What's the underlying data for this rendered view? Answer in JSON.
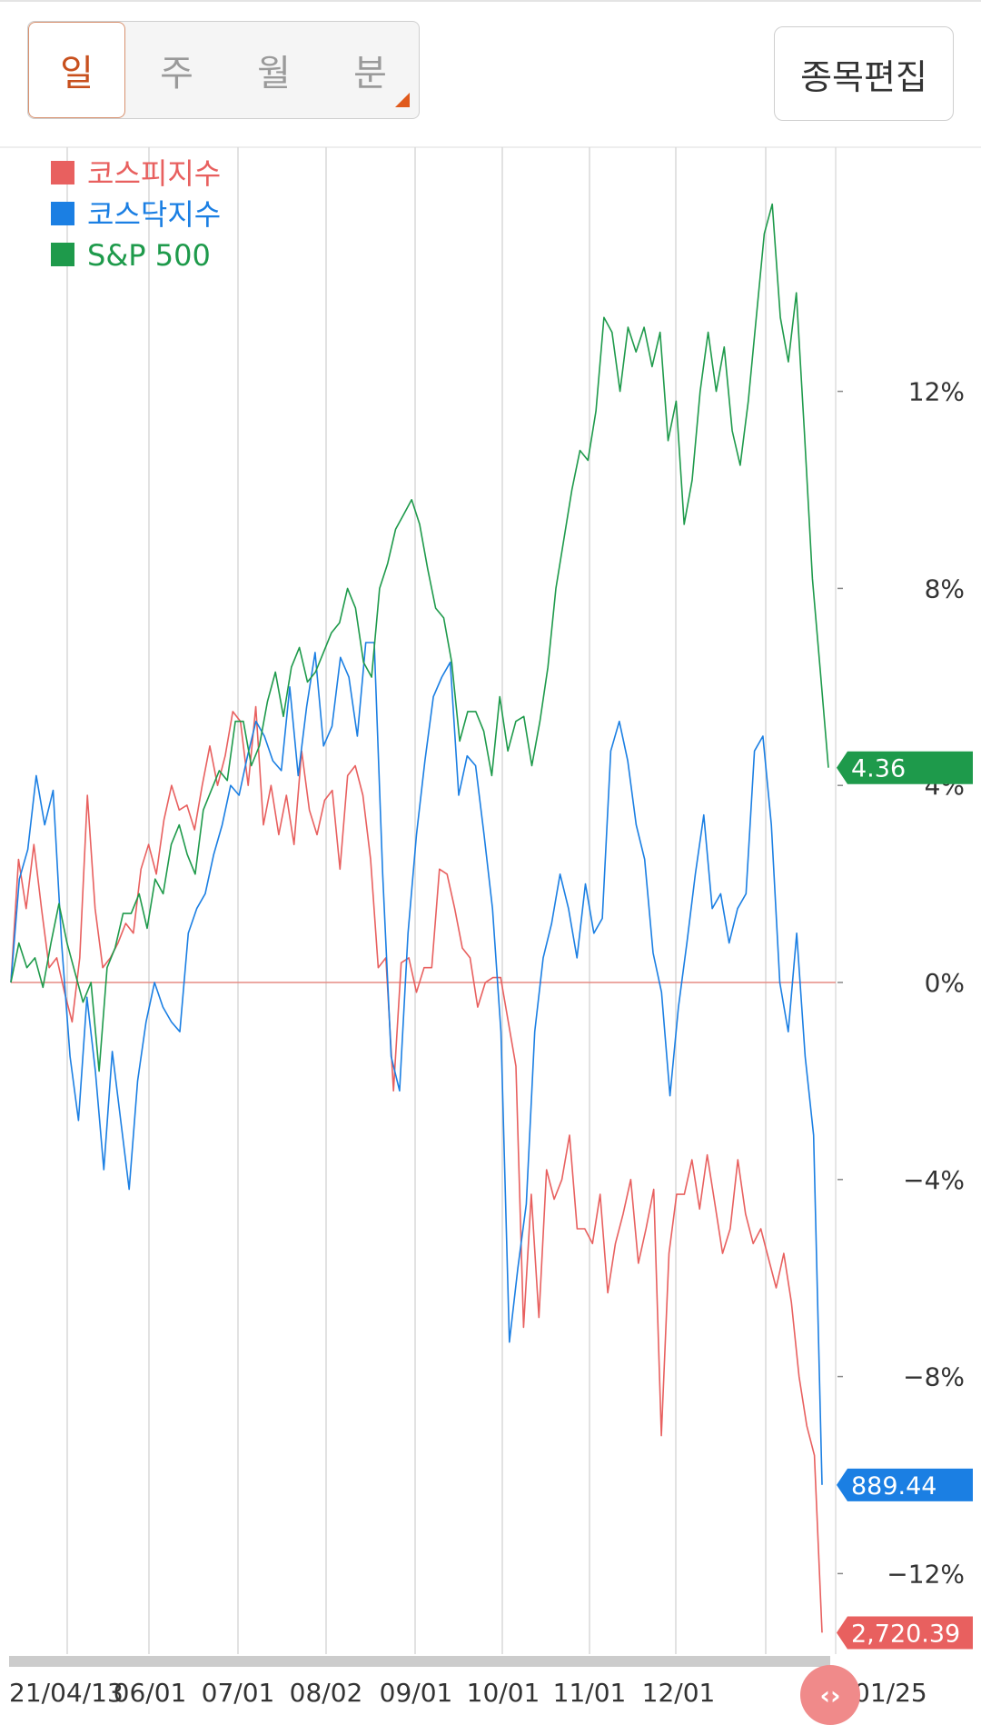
{
  "period_tabs": [
    {
      "label": "일",
      "active": true
    },
    {
      "label": "주",
      "active": false
    },
    {
      "label": "월",
      "active": false
    },
    {
      "label": "분",
      "active": false
    }
  ],
  "edit_button_label": "종목편집",
  "scroll_handle_label": "‹›",
  "chart_data": {
    "type": "line",
    "title": "",
    "xlabel": "",
    "ylabel": "",
    "x_tick_labels": [
      "21/04/13",
      "06/01",
      "07/01",
      "08/02",
      "09/01",
      "10/01",
      "11/01",
      "12/01",
      "01/25"
    ],
    "x_range_months": [
      "2021-04-13",
      "2022-01-25"
    ],
    "y_ticks": [
      "12%",
      "8%",
      "4%",
      "0%",
      "−4%",
      "−8%",
      "−12%"
    ],
    "y_tick_values": [
      12,
      8,
      4,
      0,
      -4,
      -8,
      -12
    ],
    "ylim": [
      -14,
      16
    ],
    "grid": "vertical",
    "legend_position": "top-left",
    "series": [
      {
        "name": "코스피지수",
        "color": "#e8605f",
        "last_value_label": "2,720.39",
        "values": [
          0,
          2.5,
          1.5,
          2.8,
          1.5,
          0.3,
          0.5,
          -0.2,
          -0.8,
          0.5,
          3.8,
          1.5,
          0.3,
          0.5,
          0.8,
          1.2,
          1.0,
          2.3,
          2.8,
          2.2,
          3.3,
          4.0,
          3.5,
          3.6,
          3.1,
          4.0,
          4.8,
          4.0,
          4.6,
          5.5,
          5.3,
          4.0,
          5.6,
          3.2,
          4.0,
          3.0,
          3.8,
          2.8,
          4.7,
          3.5,
          3.0,
          3.7,
          3.9,
          2.3,
          4.2,
          4.4,
          3.8,
          2.5,
          0.3,
          0.5,
          -2.2,
          0.4,
          0.5,
          -0.2,
          0.3,
          0.3,
          2.3,
          2.2,
          1.5,
          0.7,
          0.5,
          -0.5,
          0.0,
          0.1,
          0.1,
          -0.8,
          -1.7,
          -7.0,
          -4.3,
          -6.8,
          -3.8,
          -4.4,
          -4.0,
          -3.1,
          -5.0,
          -5.0,
          -5.3,
          -4.3,
          -6.3,
          -5.3,
          -4.7,
          -4.0,
          -5.7,
          -5.0,
          -4.2,
          -9.2,
          -5.5,
          -4.3,
          -4.3,
          -3.6,
          -4.6,
          -3.5,
          -4.5,
          -5.5,
          -5.0,
          -3.6,
          -4.7,
          -5.3,
          -5.0,
          -5.6,
          -6.2,
          -5.5,
          -6.5,
          -8.0,
          -9.0,
          -9.6,
          -13.2
        ]
      },
      {
        "name": "코스닥지수",
        "color": "#1b7fe3",
        "last_value_label": "889.44",
        "values": [
          0,
          2.1,
          2.7,
          4.2,
          3.2,
          3.9,
          0.8,
          -1.5,
          -2.8,
          -0.3,
          -1.8,
          -3.8,
          -1.4,
          -2.8,
          -4.2,
          -2.0,
          -0.8,
          0.0,
          -0.5,
          -0.8,
          -1.0,
          1.0,
          1.5,
          1.8,
          2.6,
          3.2,
          4.0,
          3.8,
          4.6,
          5.3,
          5.0,
          4.5,
          4.3,
          6.0,
          4.2,
          5.6,
          6.7,
          4.8,
          5.2,
          6.6,
          6.2,
          5.0,
          6.9,
          6.9,
          2.2,
          -1.5,
          -2.2,
          1.0,
          3.0,
          4.5,
          5.8,
          6.2,
          6.5,
          3.8,
          4.6,
          4.4,
          3.0,
          1.5,
          -1.0,
          -7.3,
          -5.8,
          -4.5,
          -1.0,
          0.5,
          1.2,
          2.2,
          1.5,
          0.5,
          2.0,
          1.0,
          1.3,
          4.7,
          5.3,
          4.5,
          3.2,
          2.5,
          0.6,
          -0.2,
          -2.3,
          -0.5,
          0.8,
          2.2,
          3.4,
          1.5,
          1.8,
          0.8,
          1.5,
          1.8,
          4.7,
          5.0,
          3.2,
          0.0,
          -1.0,
          1.0,
          -1.5,
          -3.1,
          -10.2
        ]
      },
      {
        "name": "S&P 500",
        "color": "#1e9a4b",
        "last_value_label": "4.36",
        "values": [
          0,
          0.8,
          0.3,
          0.5,
          -0.1,
          0.8,
          1.6,
          0.8,
          0.2,
          -0.4,
          0.0,
          -1.8,
          0.3,
          0.7,
          1.4,
          1.4,
          1.8,
          1.1,
          2.1,
          1.8,
          2.8,
          3.2,
          2.6,
          2.2,
          3.5,
          3.9,
          4.3,
          4.1,
          5.3,
          5.3,
          4.4,
          4.8,
          5.7,
          6.3,
          5.4,
          6.4,
          6.8,
          6.1,
          6.3,
          6.7,
          7.1,
          7.3,
          8.0,
          7.6,
          6.5,
          6.2,
          8.0,
          8.5,
          9.2,
          9.5,
          9.8,
          9.3,
          8.4,
          7.6,
          7.4,
          6.5,
          4.9,
          5.5,
          5.5,
          5.1,
          4.2,
          5.8,
          4.7,
          5.3,
          5.4,
          4.4,
          5.3,
          6.4,
          8.0,
          9.0,
          10.0,
          10.8,
          10.6,
          11.6,
          13.5,
          13.2,
          12.0,
          13.3,
          12.8,
          13.3,
          12.5,
          13.2,
          11.0,
          11.8,
          9.3,
          10.2,
          12.0,
          13.2,
          12.0,
          12.9,
          11.2,
          10.5,
          11.8,
          13.5,
          15.2,
          15.8,
          13.5,
          12.6,
          14.0,
          11.2,
          8.2,
          6.3,
          4.36
        ]
      }
    ]
  }
}
